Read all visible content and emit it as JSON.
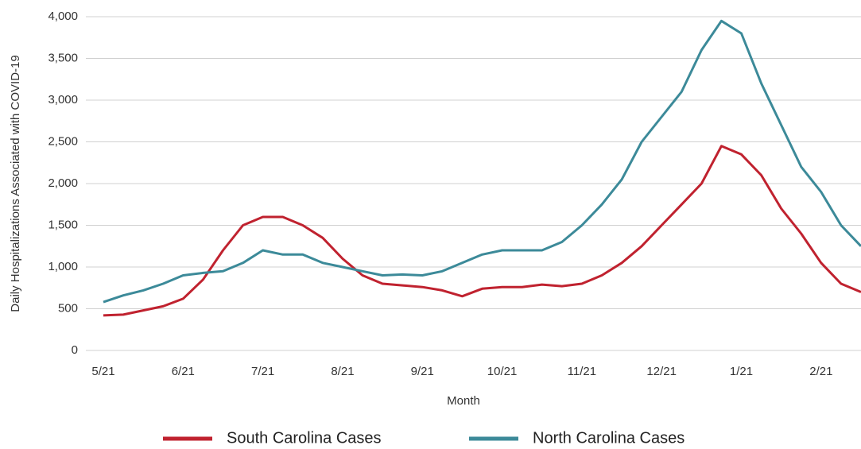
{
  "chart_data": {
    "type": "line",
    "y_label": "Daily Hospitalizations Associated with COVID-19",
    "x_label": "Month",
    "categories": [
      "5/21",
      null,
      null,
      null,
      "6/21",
      null,
      null,
      null,
      "7/21",
      null,
      null,
      null,
      "8/21",
      null,
      null,
      null,
      "9/21",
      null,
      null,
      null,
      "10/21",
      null,
      null,
      null,
      "11/21",
      null,
      null,
      null,
      "12/21",
      null,
      null,
      null,
      "1/21",
      null,
      null,
      null,
      "2/21",
      null,
      null
    ],
    "series": [
      {
        "name": "South Carolina Cases",
        "color": "#c0222f",
        "values": [
          420,
          430,
          480,
          530,
          620,
          850,
          1200,
          1500,
          1600,
          1600,
          1500,
          1350,
          1100,
          900,
          800,
          780,
          760,
          720,
          650,
          740,
          760,
          760,
          790,
          770,
          800,
          900,
          1050,
          1250,
          1500,
          1750,
          2000,
          2450,
          2350,
          2100,
          1700,
          1400,
          1050,
          800,
          700
        ]
      },
      {
        "name": "North Carolina Cases",
        "color": "#3c8a99",
        "values": [
          580,
          660,
          720,
          800,
          900,
          930,
          950,
          1050,
          1200,
          1150,
          1150,
          1050,
          1000,
          950,
          900,
          910,
          900,
          950,
          1050,
          1150,
          1200,
          1200,
          1200,
          1300,
          1500,
          1750,
          2050,
          2500,
          2800,
          3100,
          3600,
          3950,
          3800,
          3200,
          2700,
          2200,
          1900,
          1500,
          1250
        ]
      }
    ],
    "ylim": [
      0,
      4000
    ],
    "yticks": [
      0,
      500,
      {
        "value": 1000,
        "label": "1,000"
      },
      {
        "value": 1500,
        "label": "1,500"
      },
      {
        "value": 2000,
        "label": "2,000"
      },
      {
        "value": 2500,
        "label": "2,500"
      },
      {
        "value": 3000,
        "label": "3,000"
      },
      {
        "value": 3500,
        "label": "3,500"
      },
      {
        "value": 4000,
        "label": "4,000"
      }
    ],
    "grid": true
  }
}
